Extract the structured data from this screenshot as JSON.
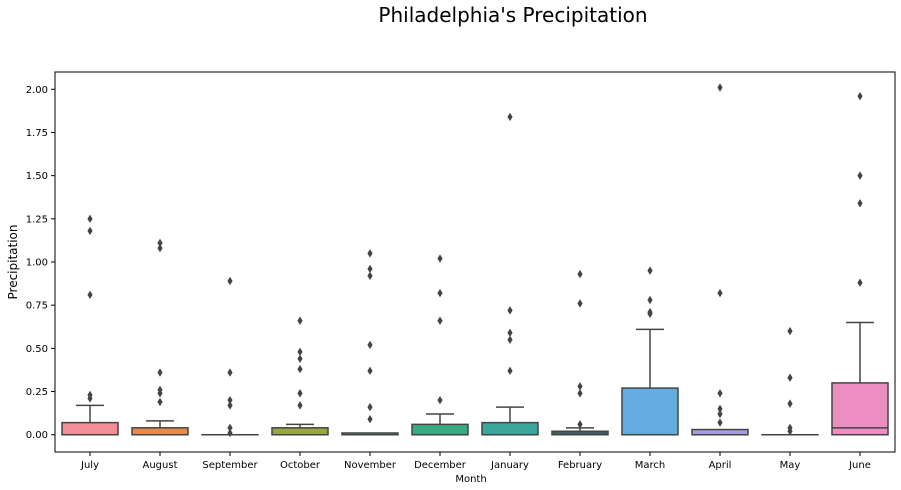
{
  "chart_data": {
    "type": "box",
    "title": "Philadelphia's Precipitation",
    "xlabel": "Month",
    "ylabel": "Precipitation",
    "ylim": [
      -0.1,
      2.1
    ],
    "yticks": [
      "0.00",
      "0.25",
      "0.50",
      "0.75",
      "1.00",
      "1.25",
      "1.50",
      "1.75",
      "2.00"
    ],
    "grid": false,
    "categories": [
      {
        "month": "July",
        "color": "#f28e96",
        "q1": 0.0,
        "median": 0.0,
        "q3": 0.07,
        "whisker_low": 0.0,
        "whisker_high": 0.17,
        "outliers": [
          1.25,
          1.18,
          0.81,
          0.23,
          0.21
        ]
      },
      {
        "month": "August",
        "color": "#e58a48",
        "q1": 0.0,
        "median": 0.0,
        "q3": 0.04,
        "whisker_low": 0.0,
        "whisker_high": 0.08,
        "outliers": [
          1.11,
          1.08,
          0.36,
          0.26,
          0.24,
          0.19
        ]
      },
      {
        "month": "September",
        "color": "#bf9d3b",
        "q1": 0.0,
        "median": 0.0,
        "q3": 0.0,
        "whisker_low": 0.0,
        "whisker_high": 0.0,
        "outliers": [
          0.89,
          0.36,
          0.2,
          0.17,
          0.04,
          0.01
        ]
      },
      {
        "month": "October",
        "color": "#9aa641",
        "q1": 0.0,
        "median": 0.0,
        "q3": 0.04,
        "whisker_low": 0.0,
        "whisker_high": 0.06,
        "outliers": [
          0.66,
          0.48,
          0.44,
          0.38,
          0.24,
          0.17
        ]
      },
      {
        "month": "November",
        "color": "#5aaa5e",
        "q1": 0.0,
        "median": 0.0,
        "q3": 0.01,
        "whisker_low": 0.0,
        "whisker_high": 0.01,
        "outliers": [
          1.05,
          0.96,
          0.92,
          0.52,
          0.37,
          0.16,
          0.09
        ]
      },
      {
        "month": "December",
        "color": "#3aaa80",
        "q1": 0.0,
        "median": 0.0,
        "q3": 0.06,
        "whisker_low": 0.0,
        "whisker_high": 0.12,
        "outliers": [
          1.02,
          0.82,
          0.66,
          0.2
        ]
      },
      {
        "month": "January",
        "color": "#3ba79c",
        "q1": 0.0,
        "median": 0.0,
        "q3": 0.07,
        "whisker_low": 0.0,
        "whisker_high": 0.16,
        "outliers": [
          1.84,
          0.72,
          0.59,
          0.55,
          0.37
        ]
      },
      {
        "month": "February",
        "color": "#3ea6b3",
        "q1": 0.0,
        "median": 0.01,
        "q3": 0.02,
        "whisker_low": 0.0,
        "whisker_high": 0.04,
        "outliers": [
          0.93,
          0.76,
          0.28,
          0.24,
          0.06
        ]
      },
      {
        "month": "March",
        "color": "#65ade1",
        "q1": 0.0,
        "median": 0.0,
        "q3": 0.27,
        "whisker_low": 0.0,
        "whisker_high": 0.61,
        "outliers": [
          0.95,
          0.78,
          0.71,
          0.7
        ]
      },
      {
        "month": "April",
        "color": "#a99ee2",
        "q1": 0.0,
        "median": 0.0,
        "q3": 0.03,
        "whisker_low": 0.0,
        "whisker_high": 0.03,
        "outliers": [
          2.01,
          0.82,
          0.24,
          0.15,
          0.12,
          0.07
        ]
      },
      {
        "month": "May",
        "color": "#df8fd9",
        "q1": 0.0,
        "median": 0.0,
        "q3": 0.0,
        "whisker_low": 0.0,
        "whisker_high": 0.0,
        "outliers": [
          0.6,
          0.33,
          0.18,
          0.04,
          0.02
        ]
      },
      {
        "month": "June",
        "color": "#ec8ec2",
        "q1": 0.0,
        "median": 0.04,
        "q3": 0.3,
        "whisker_low": 0.0,
        "whisker_high": 0.65,
        "outliers": [
          1.96,
          1.5,
          1.34,
          0.88
        ]
      }
    ]
  }
}
